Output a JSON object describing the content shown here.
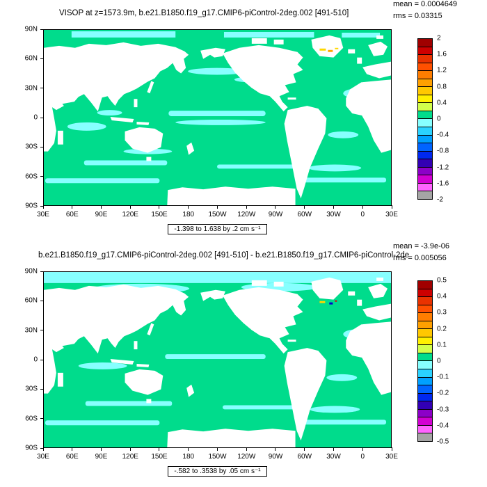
{
  "colors": {
    "ocean": "#00dc8c",
    "patch": "#87ffff",
    "land": "#ffffff",
    "frame": "#000000"
  },
  "panels": [
    {
      "title": "VISOP at z=1573.9m, b.e21.B1850.f19_g17.CMIP6-piControl-2deg.002 [491-510]",
      "stats": {
        "mean": "mean = 0.0004649",
        "rms": "rms = 0.03315"
      },
      "caption": "-1.398 to 1.638 by .2 cm s⁻¹",
      "axes": {
        "y_labels": [
          "90N",
          "60N",
          "30N",
          "0",
          "30S",
          "60S",
          "90S"
        ],
        "x_labels": [
          "30E",
          "60E",
          "90E",
          "120E",
          "150E",
          "180",
          "150W",
          "120W",
          "90W",
          "60W",
          "30W",
          "0",
          "30E"
        ]
      },
      "colorbar": {
        "labels": [
          "2",
          "1.6",
          "1.2",
          "0.8",
          "0.4",
          "0",
          "-0.4",
          "-0.8",
          "-1.2",
          "-1.6",
          "-2"
        ],
        "colors": [
          "#a00000",
          "#cd0000",
          "#e93200",
          "#ff5000",
          "#ff7d00",
          "#ffa000",
          "#ffc800",
          "#fff000",
          "#d2ff4b",
          "#00dc8c",
          "#87ffff",
          "#2ad2ff",
          "#00a0ff",
          "#0064ff",
          "#0028f0",
          "#3200b4",
          "#8c00c8",
          "#d200d2",
          "#ff64ff",
          "#a5a5a5"
        ]
      }
    },
    {
      "title": "b.e21.B1850.f19_g17.CMIP6-piControl-2deg.002 [491-510] - b.e21.B1850.f19_g17.CMIP6-piControl-2de",
      "stats": {
        "mean": "mean = -3.9e-06",
        "rms": "rms = 0.005056"
      },
      "caption": "-.582 to .3538 by .05 cm s⁻¹",
      "axes": {
        "y_labels": [
          "90N",
          "60N",
          "30N",
          "0",
          "30S",
          "60S",
          "90S"
        ],
        "x_labels": [
          "30E",
          "60E",
          "90E",
          "120E",
          "150E",
          "180",
          "150W",
          "120W",
          "90W",
          "60W",
          "30W",
          "0",
          "30E"
        ]
      },
      "colorbar": {
        "labels": [
          "0.5",
          "0.4",
          "0.3",
          "0.2",
          "0.1",
          "0",
          "-0.1",
          "-0.2",
          "-0.3",
          "-0.4",
          "-0.5"
        ],
        "colors": [
          "#a00000",
          "#cd0000",
          "#e93200",
          "#ff5000",
          "#ff7d00",
          "#ffa000",
          "#ffc800",
          "#fff000",
          "#d2ff4b",
          "#00dc8c",
          "#87ffff",
          "#2ad2ff",
          "#00a0ff",
          "#0064ff",
          "#0028f0",
          "#3200b4",
          "#8c00c8",
          "#d200d2",
          "#ff64ff",
          "#a5a5a5"
        ]
      }
    }
  ],
  "chart_data": [
    {
      "type": "heatmap",
      "title": "VISOP at z=1573.9m, b.e21.B1850.f19_g17.CMIP6-piControl-2deg.002 [491-510]",
      "projection": "global lat-lon map, left edge 30E",
      "x_ticks": [
        "30E",
        "60E",
        "90E",
        "120E",
        "150E",
        "180",
        "150W",
        "120W",
        "90W",
        "60W",
        "30W",
        "0",
        "30E"
      ],
      "y_ticks": [
        "90N",
        "60N",
        "30N",
        "0",
        "30S",
        "60S",
        "90S"
      ],
      "mean": 0.0004649,
      "rms": 0.03315,
      "field_min": -1.398,
      "field_max": 1.638,
      "contour_interval": 0.2,
      "units": "cm s-1",
      "colorbar_tick_values": [
        2,
        1.6,
        1.2,
        0.8,
        0.4,
        0,
        -0.4,
        -0.8,
        -1.2,
        -1.6,
        -2
      ],
      "legend_position": "right",
      "dominant_field": "ocean mostly between -0.2 and 0.2 (green above 0, cyan below 0); land masked white"
    },
    {
      "type": "heatmap",
      "title": "b.e21.B1850.f19_g17.CMIP6-piControl-2deg.002 [491-510] - b.e21.B1850.f19_g17.CMIP6-piControl-2de",
      "projection": "global lat-lon map, left edge 30E",
      "x_ticks": [
        "30E",
        "60E",
        "90E",
        "120E",
        "150E",
        "180",
        "150W",
        "120W",
        "90W",
        "60W",
        "30W",
        "0",
        "30E"
      ],
      "y_ticks": [
        "90N",
        "60N",
        "30N",
        "0",
        "30S",
        "60S",
        "90S"
      ],
      "mean": -3.9e-06,
      "rms": 0.005056,
      "field_min": -0.582,
      "field_max": 0.3538,
      "contour_interval": 0.05,
      "units": "cm s-1",
      "colorbar_tick_values": [
        0.5,
        0.4,
        0.3,
        0.2,
        0.1,
        0,
        -0.1,
        -0.2,
        -0.3,
        -0.4,
        -0.5
      ],
      "legend_position": "right",
      "dominant_field": "difference field mostly between -0.05 and 0.05 (green/cyan); land masked white"
    }
  ]
}
